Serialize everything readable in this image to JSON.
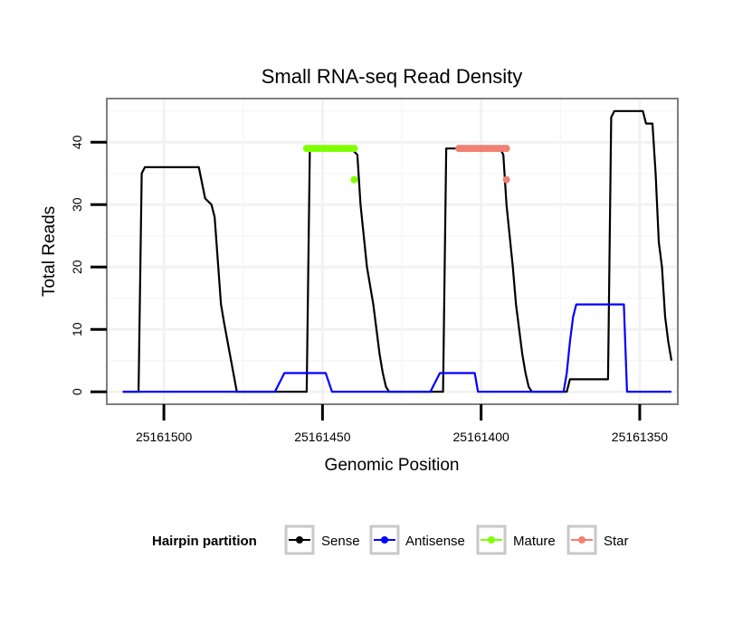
{
  "chart_data": {
    "type": "line",
    "title": "Small RNA-seq Read Density",
    "xlabel": "Genomic Position",
    "ylabel": "Total Reads",
    "x_reversed": true,
    "xlim": [
      25161518,
      25161338
    ],
    "ylim": [
      -2,
      47
    ],
    "x_ticks": [
      25161500,
      25161450,
      25161400,
      25161350
    ],
    "x_tick_labels": [
      "25161500",
      "25161450",
      "25161400",
      "25161350"
    ],
    "y_ticks": [
      0,
      10,
      20,
      30,
      40
    ],
    "y_tick_labels": [
      "0",
      "10",
      "20",
      "30",
      "40"
    ],
    "grid": true,
    "legend": {
      "title": "Hairpin partition",
      "position": "bottom",
      "entries": [
        "Sense",
        "Antisense",
        "Mature",
        "Star"
      ]
    },
    "series": [
      {
        "name": "Sense",
        "color": "#000000",
        "style": "line",
        "x": [
          25161513,
          25161508,
          25161507,
          25161506,
          25161505,
          25161495,
          25161489,
          25161487,
          25161485,
          25161484,
          25161482,
          25161481,
          25161477,
          25161460,
          25161455,
          25161454,
          25161442,
          25161441,
          25161439,
          25161438,
          25161436,
          25161434,
          25161433,
          25161432,
          25161431,
          25161430,
          25161429,
          25161428,
          25161420,
          25161412,
          25161411,
          25161405,
          25161394,
          25161393,
          25161392,
          25161390,
          25161389,
          25161388,
          25161387,
          25161386,
          25161385,
          25161384,
          25161383,
          25161380,
          25161373,
          25161372,
          25161370,
          25161360,
          25161359,
          25161358,
          25161357,
          25161350,
          25161349,
          25161348,
          25161346,
          25161345,
          25161344,
          25161343,
          25161342,
          25161341,
          25161340
        ],
        "y": [
          0,
          0,
          35,
          36,
          36,
          36,
          36,
          31,
          30,
          28,
          14,
          11,
          0,
          0,
          0,
          39,
          39,
          39,
          38,
          30,
          20,
          14,
          10,
          6,
          3,
          0.8,
          0,
          0,
          0,
          0,
          39,
          39,
          39,
          38,
          30,
          20,
          14,
          10,
          6,
          3,
          0.8,
          0,
          0,
          0,
          0,
          2,
          2,
          2,
          44,
          45,
          45,
          45,
          45,
          43,
          43,
          35,
          24,
          20,
          12,
          8,
          5
        ]
      },
      {
        "name": "Antisense",
        "color": "#0000ff",
        "style": "line",
        "x": [
          25161513,
          25161477,
          25161465,
          25161464,
          25161463,
          25161462,
          25161449,
          25161447,
          25161446,
          25161416,
          25161415,
          25161414,
          25161413,
          25161402,
          25161401,
          25161400,
          25161374,
          25161373,
          25161372,
          25161371,
          25161370,
          25161369,
          25161368,
          25161355,
          25161354,
          25161353,
          25161340
        ],
        "y": [
          0,
          0,
          0,
          1,
          2,
          3,
          3,
          0,
          0,
          0,
          1,
          2,
          3,
          3,
          0,
          0,
          0,
          3,
          8,
          12,
          14,
          14,
          14,
          14,
          0,
          0,
          0
        ]
      },
      {
        "name": "Mature",
        "color": "#7fff00",
        "style": "points",
        "x": [
          25161455,
          25161454,
          25161453,
          25161452,
          25161451,
          25161450,
          25161449,
          25161448,
          25161447,
          25161446,
          25161445,
          25161444,
          25161443,
          25161442,
          25161441,
          25161440,
          25161440
        ],
        "y": [
          39,
          39,
          39,
          39,
          39,
          39,
          39,
          39,
          39,
          39,
          39,
          39,
          39,
          39,
          39,
          39,
          34
        ]
      },
      {
        "name": "Star",
        "color": "#f08070",
        "style": "points",
        "x": [
          25161407,
          25161406,
          25161405,
          25161404,
          25161403,
          25161402,
          25161401,
          25161400,
          25161399,
          25161398,
          25161397,
          25161396,
          25161395,
          25161394,
          25161393,
          25161392,
          25161392
        ],
        "y": [
          39,
          39,
          39,
          39,
          39,
          39,
          39,
          39,
          39,
          39,
          39,
          39,
          39,
          39,
          39,
          39,
          34
        ]
      }
    ]
  }
}
